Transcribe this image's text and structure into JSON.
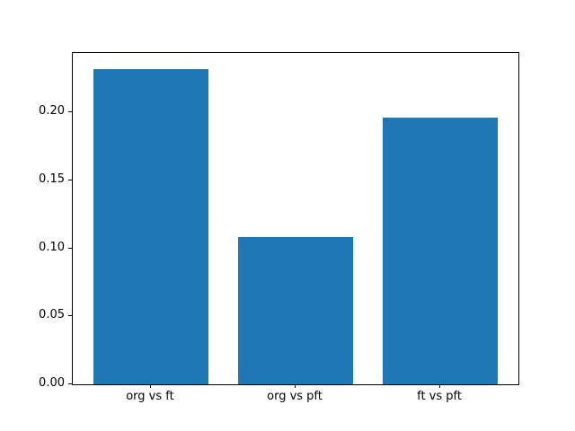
{
  "chart_data": {
    "type": "bar",
    "title": "",
    "xlabel": "",
    "ylabel": "",
    "categories": [
      "org vs ft",
      "org vs pft",
      "ft vs pft"
    ],
    "values": [
      0.232,
      0.108,
      0.196
    ],
    "bar_centers": [
      0,
      1,
      2
    ],
    "bar_width": 0.8,
    "xlim": [
      -0.54,
      2.54
    ],
    "ylim": [
      0,
      0.2436
    ],
    "yticks": [
      0.0,
      0.05,
      0.1,
      0.15,
      0.2
    ],
    "ytick_labels": [
      "0.00",
      "0.05",
      "0.10",
      "0.15",
      "0.20"
    ],
    "grid": false,
    "legend": null,
    "colors": {
      "bar": "#1f77b4",
      "spine": "#000000",
      "tick_text": "#000000",
      "background": "#ffffff"
    }
  }
}
